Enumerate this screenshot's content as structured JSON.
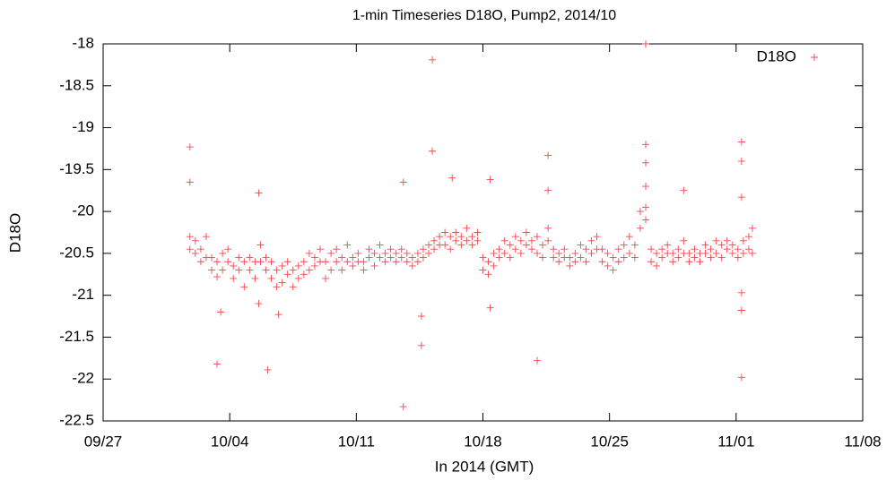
{
  "chart_data": {
    "type": "scatter",
    "title": "1-min Timeseries D18O, Pump2, 2014/10",
    "x_label": "In 2014 (GMT)",
    "y_label": "D18O",
    "legend": "top-right",
    "xlim": [
      0,
      42
    ],
    "xticks": [
      {
        "value": 0,
        "label": "09/27"
      },
      {
        "value": 7,
        "label": "10/04"
      },
      {
        "value": 14,
        "label": "10/11"
      },
      {
        "value": 21,
        "label": "10/18"
      },
      {
        "value": 28,
        "label": "10/25"
      },
      {
        "value": 35,
        "label": "11/01"
      },
      {
        "value": 42,
        "label": "11/08"
      }
    ],
    "ylim": [
      -22.5,
      -18
    ],
    "yticks": [
      -22.5,
      -22,
      -21.5,
      -21,
      -20.5,
      -20,
      -19.5,
      -19,
      -18.5,
      -18
    ],
    "x": [
      4.8,
      4.8,
      5.1,
      5.1,
      5.4,
      5.4,
      5.7,
      5.7,
      6.0,
      6.0,
      6.3,
      6.3,
      6.6,
      6.6,
      6.9,
      6.9,
      7.2,
      7.2,
      7.5,
      7.5,
      7.8,
      7.8,
      8.1,
      8.1,
      8.4,
      8.4,
      8.7,
      8.7,
      9.0,
      9.0,
      9.3,
      9.3,
      9.6,
      9.6,
      9.9,
      9.9,
      10.2,
      10.2,
      10.5,
      10.5,
      10.8,
      10.8,
      11.1,
      11.1,
      11.4,
      11.4,
      11.7,
      11.7,
      12.0,
      12.0,
      12.3,
      12.3,
      12.6,
      12.6,
      12.9,
      12.9,
      13.2,
      13.2,
      13.5,
      13.5,
      13.8,
      13.8,
      14.1,
      14.1,
      14.4,
      14.4,
      14.7,
      14.7,
      15.0,
      15.0,
      15.3,
      15.3,
      15.6,
      15.6,
      15.9,
      15.9,
      16.2,
      16.2,
      16.5,
      16.5,
      16.8,
      16.8,
      17.1,
      17.1,
      17.4,
      17.4,
      17.7,
      17.7,
      18.0,
      18.0,
      18.3,
      18.3,
      18.6,
      18.6,
      18.9,
      18.9,
      19.2,
      19.2,
      19.5,
      19.5,
      19.8,
      19.8,
      20.1,
      20.1,
      20.4,
      20.4,
      20.7,
      20.7,
      21.0,
      21.0,
      21.3,
      21.3,
      21.6,
      21.6,
      21.9,
      21.9,
      22.2,
      22.2,
      22.5,
      22.5,
      22.8,
      22.8,
      23.1,
      23.1,
      23.4,
      23.4,
      23.7,
      23.7,
      24.0,
      24.0,
      24.3,
      24.3,
      24.6,
      24.6,
      24.9,
      24.9,
      25.2,
      25.2,
      25.5,
      25.5,
      25.8,
      25.8,
      26.1,
      26.1,
      26.4,
      26.4,
      26.7,
      26.7,
      27.0,
      27.0,
      27.3,
      27.3,
      27.6,
      27.6,
      27.9,
      27.9,
      28.2,
      28.2,
      28.5,
      28.5,
      28.8,
      28.8,
      29.1,
      29.1,
      29.4,
      29.4,
      29.7,
      29.7,
      30.0,
      30.0,
      30.3,
      30.3,
      30.6,
      30.6,
      30.9,
      30.9,
      31.2,
      31.2,
      31.5,
      31.5,
      31.8,
      31.8,
      32.1,
      32.1,
      32.4,
      32.4,
      32.7,
      32.7,
      33.0,
      33.0,
      33.3,
      33.3,
      33.6,
      33.6,
      33.9,
      33.9,
      34.2,
      34.2,
      34.5,
      34.5,
      34.8,
      34.8,
      35.1,
      35.1,
      35.4,
      35.4,
      35.7,
      35.7,
      35.9,
      35.9,
      4.8,
      4.8,
      6.3,
      6.5,
      8.6,
      8.6,
      9.1,
      9.7,
      16.6,
      16.6,
      17.6,
      17.6,
      18.2,
      18.2,
      19.3,
      21.4,
      21.4,
      24.0,
      24.6,
      24.6,
      30.0,
      30.0,
      30.0,
      30.0,
      32.1,
      35.3,
      35.3,
      35.3,
      35.3,
      35.3,
      35.3
    ],
    "series": [
      {
        "name": "D18O",
        "color": "#f0474f",
        "values": [
          -20.3,
          -20.45,
          -20.35,
          -20.5,
          -20.45,
          -20.6,
          -20.3,
          -20.55,
          -20.55,
          -20.7,
          -20.6,
          -20.78,
          -20.5,
          -20.7,
          -20.6,
          -20.45,
          -20.65,
          -20.8,
          -20.55,
          -20.7,
          -20.6,
          -20.9,
          -20.7,
          -20.55,
          -20.6,
          -20.8,
          -20.4,
          -20.6,
          -20.7,
          -20.55,
          -20.8,
          -20.6,
          -20.7,
          -20.9,
          -20.65,
          -20.85,
          -20.75,
          -20.6,
          -20.7,
          -20.9,
          -20.65,
          -20.8,
          -20.6,
          -20.75,
          -20.5,
          -20.7,
          -20.55,
          -20.65,
          -20.45,
          -20.6,
          -20.6,
          -20.8,
          -20.5,
          -20.7,
          -20.45,
          -20.6,
          -20.55,
          -20.7,
          -20.4,
          -20.6,
          -20.55,
          -20.65,
          -20.5,
          -20.6,
          -20.6,
          -20.7,
          -20.45,
          -20.55,
          -20.5,
          -20.65,
          -20.4,
          -20.55,
          -20.5,
          -20.6,
          -20.45,
          -20.55,
          -20.5,
          -20.6,
          -20.55,
          -20.45,
          -20.5,
          -20.6,
          -20.55,
          -20.65,
          -20.5,
          -20.6,
          -20.55,
          -20.45,
          -20.4,
          -20.5,
          -20.35,
          -20.45,
          -20.3,
          -20.4,
          -20.25,
          -20.4,
          -20.3,
          -20.45,
          -20.25,
          -20.35,
          -20.3,
          -20.4,
          -20.2,
          -20.35,
          -20.3,
          -20.4,
          -20.25,
          -20.35,
          -20.55,
          -20.7,
          -20.6,
          -20.75,
          -20.5,
          -20.65,
          -20.45,
          -20.55,
          -20.35,
          -20.5,
          -20.4,
          -20.55,
          -20.3,
          -20.45,
          -20.35,
          -20.5,
          -20.25,
          -20.4,
          -20.35,
          -20.45,
          -20.3,
          -20.5,
          -20.4,
          -20.55,
          -20.2,
          -20.35,
          -20.45,
          -20.55,
          -20.5,
          -20.6,
          -20.45,
          -20.55,
          -20.55,
          -20.65,
          -20.5,
          -20.6,
          -20.4,
          -20.55,
          -20.45,
          -20.6,
          -20.35,
          -20.5,
          -20.3,
          -20.45,
          -20.45,
          -20.6,
          -20.5,
          -20.65,
          -20.55,
          -20.7,
          -20.45,
          -20.6,
          -20.4,
          -20.55,
          -20.3,
          -20.5,
          -20.4,
          -20.55,
          -20.0,
          -20.2,
          -19.95,
          -20.1,
          -20.45,
          -20.6,
          -20.5,
          -20.65,
          -20.45,
          -20.55,
          -20.4,
          -20.5,
          -20.5,
          -20.6,
          -20.45,
          -20.55,
          -20.35,
          -20.5,
          -20.5,
          -20.6,
          -20.45,
          -20.55,
          -20.5,
          -20.6,
          -20.4,
          -20.5,
          -20.45,
          -20.55,
          -20.35,
          -20.5,
          -20.4,
          -20.55,
          -20.35,
          -20.45,
          -20.4,
          -20.5,
          -20.45,
          -20.55,
          -20.35,
          -20.5,
          -20.3,
          -20.45,
          -20.2,
          -20.5,
          -19.23,
          -19.65,
          -21.82,
          -21.2,
          -21.1,
          -19.78,
          -21.89,
          -21.23,
          -22.33,
          -19.65,
          -21.6,
          -21.25,
          -18.19,
          -19.28,
          -19.6,
          -21.15,
          -19.62,
          -21.78,
          -19.33,
          -19.75,
          -19.2,
          -19.42,
          -19.7,
          -18.0,
          -19.75,
          -19.17,
          -19.4,
          -19.83,
          -21.18,
          -21.98,
          -20.97
        ]
      }
    ]
  }
}
